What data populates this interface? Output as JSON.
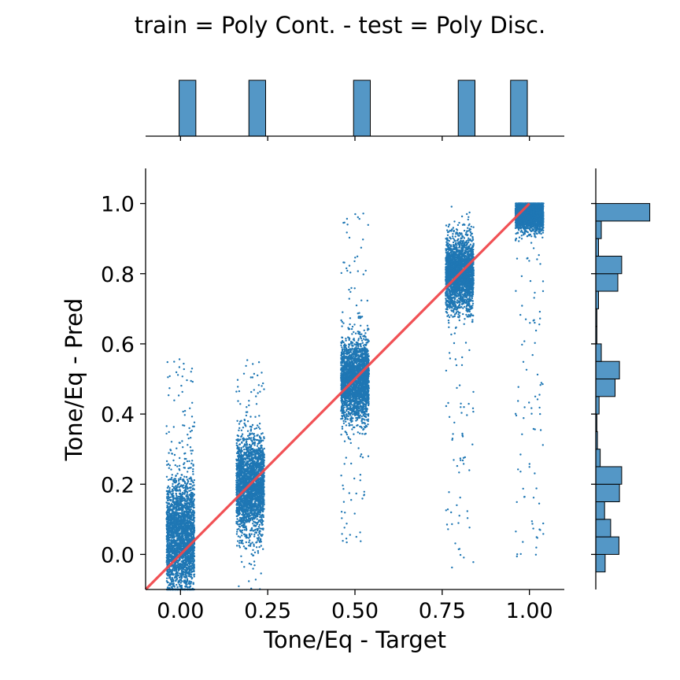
{
  "title": "train = Poly Cont. - test = Poly Disc.",
  "chart_data": {
    "type": "scatter",
    "title": "train = Poly Cont. - test = Poly Disc.",
    "xlabel": "Tone/Eq - Target",
    "ylabel": "Tone/Eq - Pred",
    "xlim": [
      -0.1,
      1.1
    ],
    "ylim": [
      -0.1,
      1.1
    ],
    "xticks": [
      "0.00",
      "0.25",
      "0.50",
      "0.75",
      "1.00"
    ],
    "yticks": [
      "0.0",
      "0.2",
      "0.4",
      "0.6",
      "0.8",
      "1.0"
    ],
    "grid": false,
    "clusters": [
      {
        "x": 0.0,
        "y_center": 0.05,
        "y_spread": 0.15,
        "y_range": [
          -0.1,
          0.57
        ],
        "x_jitter": 0.04
      },
      {
        "x": 0.2,
        "y_center": 0.2,
        "y_spread": 0.12,
        "y_range": [
          -0.1,
          0.56
        ],
        "x_jitter": 0.04
      },
      {
        "x": 0.5,
        "y_center": 0.5,
        "y_spread": 0.1,
        "y_range": [
          0.03,
          0.99
        ],
        "x_jitter": 0.04
      },
      {
        "x": 0.8,
        "y_center": 0.8,
        "y_spread": 0.09,
        "y_range": [
          -0.04,
          1.0
        ],
        "x_jitter": 0.04
      },
      {
        "x": 1.0,
        "y_center": 0.97,
        "y_spread": 0.04,
        "y_range": [
          -0.02,
          1.0
        ],
        "x_jitter": 0.04
      }
    ],
    "identity_line": {
      "from": [
        -0.1,
        -0.1
      ],
      "to": [
        1.0,
        1.0
      ],
      "color": "#f0484c"
    },
    "marginal_x": {
      "type": "histogram",
      "bins": [
        {
          "x0": -0.004,
          "x1": 0.044,
          "height": 1
        },
        {
          "x0": 0.196,
          "x1": 0.244,
          "height": 1
        },
        {
          "x0": 0.496,
          "x1": 0.544,
          "height": 1
        },
        {
          "x0": 0.796,
          "x1": 0.844,
          "height": 1
        },
        {
          "x0": 0.946,
          "x1": 0.994,
          "height": 1
        }
      ]
    },
    "marginal_y": {
      "type": "histogram",
      "bins": [
        {
          "y0": -0.05,
          "y1": 0.0,
          "count": 0.17
        },
        {
          "y0": 0.0,
          "y1": 0.05,
          "count": 0.42
        },
        {
          "y0": 0.05,
          "y1": 0.1,
          "count": 0.27
        },
        {
          "y0": 0.1,
          "y1": 0.15,
          "count": 0.16
        },
        {
          "y0": 0.15,
          "y1": 0.2,
          "count": 0.43
        },
        {
          "y0": 0.2,
          "y1": 0.25,
          "count": 0.47
        },
        {
          "y0": 0.25,
          "y1": 0.3,
          "count": 0.08
        },
        {
          "y0": 0.3,
          "y1": 0.35,
          "count": 0.03
        },
        {
          "y0": 0.35,
          "y1": 0.4,
          "count": 0.02
        },
        {
          "y0": 0.4,
          "y1": 0.45,
          "count": 0.06
        },
        {
          "y0": 0.45,
          "y1": 0.5,
          "count": 0.35
        },
        {
          "y0": 0.5,
          "y1": 0.55,
          "count": 0.43
        },
        {
          "y0": 0.55,
          "y1": 0.6,
          "count": 0.1
        },
        {
          "y0": 0.6,
          "y1": 0.65,
          "count": 0.02
        },
        {
          "y0": 0.65,
          "y1": 0.7,
          "count": 0.02
        },
        {
          "y0": 0.7,
          "y1": 0.75,
          "count": 0.05
        },
        {
          "y0": 0.75,
          "y1": 0.8,
          "count": 0.4
        },
        {
          "y0": 0.8,
          "y1": 0.85,
          "count": 0.47
        },
        {
          "y0": 0.85,
          "y1": 0.9,
          "count": 0.05
        },
        {
          "y0": 0.9,
          "y1": 0.95,
          "count": 0.1
        },
        {
          "y0": 0.95,
          "y1": 1.0,
          "count": 0.98
        }
      ]
    },
    "colors": {
      "points": "#1f77b4",
      "bars": "#5497c6",
      "bar_edge": "#000000",
      "line": "#f0484c"
    }
  }
}
